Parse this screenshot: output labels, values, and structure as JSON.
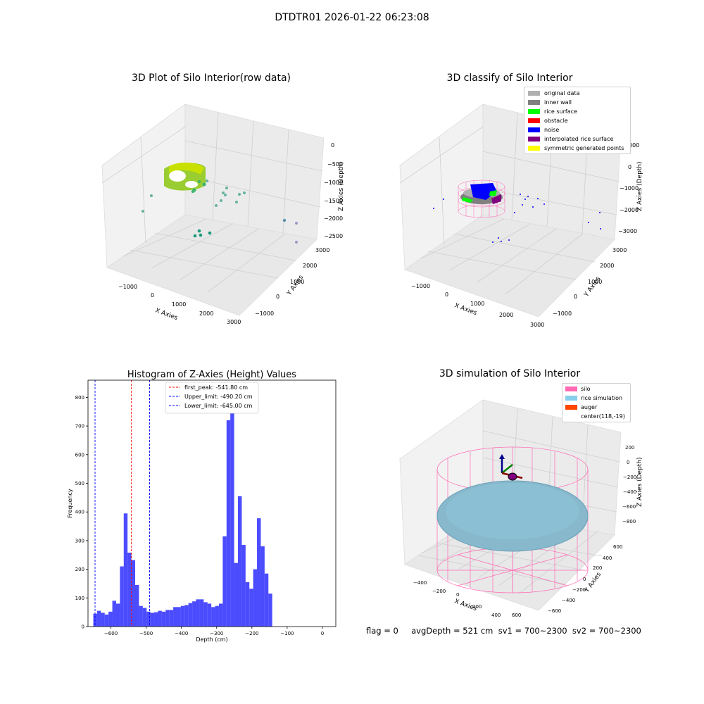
{
  "suptitle": "DTDTR01 2026-01-22 06:23:08",
  "panels": {
    "raw": {
      "title": "3D Plot of Silo Interior(row data)",
      "xlabel": "X Axies",
      "ylabel": "Y Axies",
      "zlabel": "Z Axies (Depth)",
      "xticks": [
        "−1000",
        "0",
        "1000",
        "2000",
        "3000"
      ],
      "yticks": [
        "−1000",
        "0",
        "1000",
        "2000",
        "3000"
      ],
      "zticks": [
        "0",
        "−500",
        "−1000",
        "−1500",
        "−2000",
        "−2500"
      ]
    },
    "classify": {
      "title": "3D classify of Silo Interior",
      "xlabel": "X Axies",
      "ylabel": "Y Axies",
      "zlabel": "Z Axies (Depth)",
      "xticks": [
        "−1000",
        "0",
        "1000",
        "2000",
        "3000"
      ],
      "yticks": [
        "−1000",
        "0",
        "1000",
        "2000",
        "3000"
      ],
      "zticks": [
        "1000",
        "0",
        "−1000",
        "−2000",
        "−3000"
      ],
      "legend": [
        {
          "label": "original data",
          "color": "#b0b0b0"
        },
        {
          "label": "inner wall",
          "color": "#808080"
        },
        {
          "label": "rice surface",
          "color": "#00ff00"
        },
        {
          "label": "obstacle",
          "color": "#ff0000"
        },
        {
          "label": "noise",
          "color": "#0000ff"
        },
        {
          "label": "interpolated rice surface",
          "color": "#800080"
        },
        {
          "label": "symmetric generated points",
          "color": "#ffff00"
        }
      ]
    },
    "simulation": {
      "title": "3D simulation of Silo Interior",
      "xlabel": "X Axies",
      "ylabel": "Y Axies",
      "zlabel": "Z Axies (Depth)",
      "xticks": [
        "−400",
        "−200",
        "0",
        "200",
        "400",
        "600"
      ],
      "yticks": [
        "−600",
        "−400",
        "−200",
        "0",
        "200",
        "400",
        "600"
      ],
      "zticks": [
        "200",
        "0",
        "−200",
        "−400",
        "−600",
        "−800"
      ],
      "legend": [
        {
          "label": "silo",
          "color": "#ff69b4"
        },
        {
          "label": "rice simulation",
          "color": "#87ceeb"
        },
        {
          "label": "auger",
          "color": "#ff4500"
        },
        {
          "label": "center(118,-19)",
          "color": ""
        }
      ]
    }
  },
  "status_line": "flag = 0     avgDepth = 521 cm  sv1 = 700~2300  sv2 = 700~2300",
  "chart_data": [
    {
      "type": "bar",
      "title": "Histogram of Z-Axies (Height) Values",
      "xlabel": "Depth (cm)",
      "ylabel": "Frequency",
      "xlim": [
        -665,
        38
      ],
      "ylim": [
        0,
        860
      ],
      "bar_color": "#0000ff",
      "bin_start": -650,
      "bin_width": 10.8,
      "values": [
        45,
        55,
        48,
        42,
        52,
        90,
        80,
        210,
        395,
        258,
        232,
        145,
        72,
        65,
        52,
        48,
        50,
        55,
        52,
        58,
        58,
        68,
        68,
        72,
        75,
        82,
        88,
        95,
        95,
        85,
        80,
        68,
        72,
        80,
        315,
        720,
        820,
        222,
        455,
        285,
        155,
        132,
        200,
        378,
        280,
        185,
        115
      ],
      "xticks": [
        -600,
        -500,
        -400,
        -300,
        -200,
        -100,
        0
      ],
      "yticks": [
        0,
        100,
        200,
        300,
        400,
        500,
        600,
        700,
        800
      ],
      "vlines": [
        {
          "x": -541.8,
          "color": "#ff0000",
          "label": "first_peak: -541.80 cm"
        },
        {
          "x": -490.2,
          "color": "#0000ff",
          "label": "Upper_limit: -490.20 cm"
        },
        {
          "x": -645.0,
          "color": "#0000ff",
          "label": "Lower_limit: -645.00 cm"
        }
      ],
      "legend_position": "upper center"
    }
  ]
}
